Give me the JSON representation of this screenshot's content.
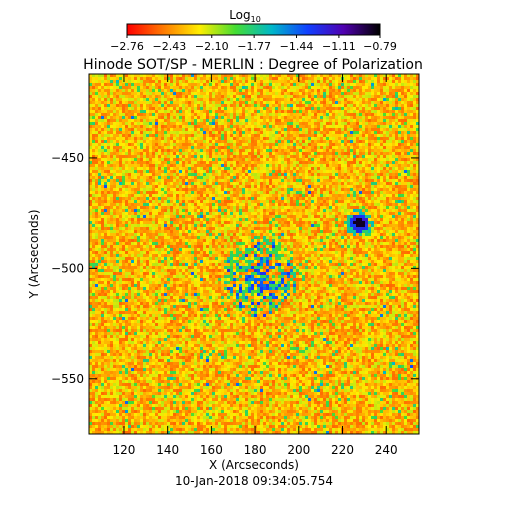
{
  "chart_data": {
    "type": "heatmap",
    "title": "Hinode SOT/SP - MERLIN : Degree of Polarization",
    "xlabel": "X (Arcseconds)",
    "ylabel": "Y (Arcseconds)",
    "timestamp": "10-Jan-2018 09:34:05.754",
    "xlim": [
      104,
      255
    ],
    "ylim": [
      -575,
      -412
    ],
    "x_ticks": [
      {
        "value": 120,
        "label": "120"
      },
      {
        "value": 140,
        "label": "140"
      },
      {
        "value": 160,
        "label": "160"
      },
      {
        "value": 180,
        "label": "180"
      },
      {
        "value": 200,
        "label": "200"
      },
      {
        "value": 220,
        "label": "220"
      },
      {
        "value": 240,
        "label": "240"
      }
    ],
    "y_ticks": [
      {
        "value": -450,
        "label": "−450"
      },
      {
        "value": -500,
        "label": "−500"
      },
      {
        "value": -550,
        "label": "−550"
      }
    ],
    "colorbar": {
      "title_main": "Log",
      "title_sub": "10",
      "range": [
        -2.76,
        -0.79
      ],
      "ticks": [
        {
          "value": -2.76,
          "label": "−2.76"
        },
        {
          "value": -2.43,
          "label": "−2.43"
        },
        {
          "value": -2.1,
          "label": "−2.10"
        },
        {
          "value": -1.77,
          "label": "−1.77"
        },
        {
          "value": -1.44,
          "label": "−1.44"
        },
        {
          "value": -1.11,
          "label": "−1.11"
        },
        {
          "value": -0.79,
          "label": "−0.79"
        }
      ],
      "colors": [
        "#ff0000",
        "#ff7a00",
        "#ffee00",
        "#44dd33",
        "#00b8c8",
        "#1040ff",
        "#5000b0",
        "#000000"
      ]
    },
    "features": [
      {
        "name": "network-patch",
        "x": [
          165,
          198
        ],
        "y": [
          -485,
          -522
        ],
        "level": -1.25
      },
      {
        "name": "spot",
        "x": 227,
        "y": -479,
        "level": -0.85
      }
    ]
  }
}
